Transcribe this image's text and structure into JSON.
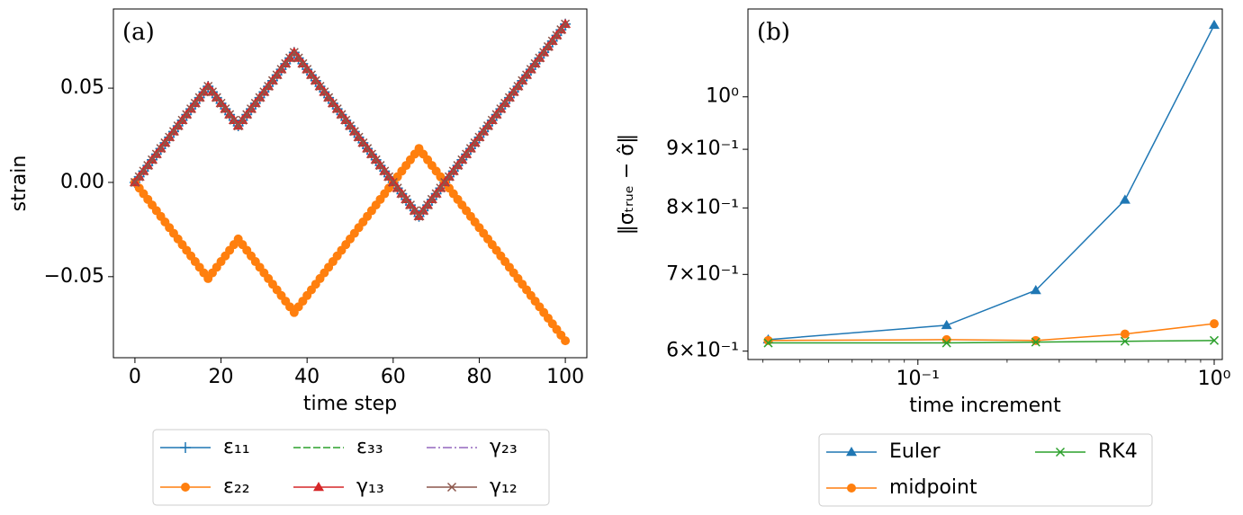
{
  "chart_data": [
    {
      "type": "line",
      "title": "(a)",
      "xlabel": "time step",
      "ylabel": "strain",
      "xlim": [
        -5,
        105
      ],
      "ylim": [
        -0.093,
        0.092
      ],
      "xticks": [
        0,
        20,
        40,
        60,
        80,
        100
      ],
      "yticks": [
        {
          "value": -0.05,
          "label": "−0.05"
        },
        {
          "value": 0,
          "label": "0.00"
        },
        {
          "value": 0.05,
          "label": "0.05"
        }
      ],
      "legend": "below",
      "legend_columns": 3,
      "x": [
        0,
        1,
        2,
        3,
        4,
        5,
        6,
        7,
        8,
        9,
        10,
        11,
        12,
        13,
        14,
        15,
        16,
        17,
        18,
        19,
        20,
        21,
        22,
        23,
        24,
        25,
        26,
        27,
        28,
        29,
        30,
        31,
        32,
        33,
        34,
        35,
        36,
        37,
        38,
        39,
        40,
        41,
        42,
        43,
        44,
        45,
        46,
        47,
        48,
        49,
        50,
        51,
        52,
        53,
        54,
        55,
        56,
        57,
        58,
        59,
        60,
        61,
        62,
        63,
        64,
        65,
        66,
        67,
        68,
        69,
        70,
        71,
        72,
        73,
        74,
        75,
        76,
        77,
        78,
        79,
        80,
        81,
        82,
        83,
        84,
        85,
        86,
        87,
        88,
        89,
        90,
        91,
        92,
        93,
        94,
        95,
        96,
        97,
        98,
        99,
        100
      ],
      "series": [
        {
          "name": "ε₁₁",
          "color": "#1f77b4",
          "marker": "+",
          "linestyle": "solid",
          "values": [
            0,
            0.003,
            0.006,
            0.009,
            0.012,
            0.015,
            0.018,
            0.021,
            0.024,
            0.027,
            0.03,
            0.033,
            0.036,
            0.039,
            0.042,
            0.045,
            0.048,
            0.051,
            0.048,
            0.045,
            0.042,
            0.039,
            0.036,
            0.033,
            0.03,
            0.033,
            0.036,
            0.039,
            0.042,
            0.045,
            0.048,
            0.051,
            0.054,
            0.057,
            0.06,
            0.063,
            0.066,
            0.069,
            0.066,
            0.063,
            0.06,
            0.057,
            0.054,
            0.051,
            0.048,
            0.045,
            0.042,
            0.039,
            0.036,
            0.033,
            0.03,
            0.027,
            0.024,
            0.021,
            0.018,
            0.015,
            0.012,
            0.009,
            0.006,
            0.003,
            0,
            -0.003,
            -0.006,
            -0.009,
            -0.012,
            -0.015,
            -0.018,
            -0.015,
            -0.012,
            -0.009,
            -0.006,
            -0.003,
            0,
            0.003,
            0.006,
            0.009,
            0.012,
            0.015,
            0.018,
            0.021,
            0.024,
            0.027,
            0.03,
            0.033,
            0.036,
            0.039,
            0.042,
            0.045,
            0.048,
            0.051,
            0.054,
            0.057,
            0.06,
            0.063,
            0.066,
            0.069,
            0.072,
            0.075,
            0.078,
            0.081,
            0.084
          ]
        },
        {
          "name": "ε₂₂",
          "color": "#ff7f0e",
          "marker": "o",
          "linestyle": "solid",
          "values": [
            0,
            -0.003,
            -0.006,
            -0.009,
            -0.012,
            -0.015,
            -0.018,
            -0.021,
            -0.024,
            -0.027,
            -0.03,
            -0.033,
            -0.036,
            -0.039,
            -0.042,
            -0.045,
            -0.048,
            -0.051,
            -0.048,
            -0.045,
            -0.042,
            -0.039,
            -0.036,
            -0.033,
            -0.03,
            -0.033,
            -0.036,
            -0.039,
            -0.042,
            -0.045,
            -0.048,
            -0.051,
            -0.054,
            -0.057,
            -0.06,
            -0.063,
            -0.066,
            -0.069,
            -0.066,
            -0.063,
            -0.06,
            -0.057,
            -0.054,
            -0.051,
            -0.048,
            -0.045,
            -0.042,
            -0.039,
            -0.036,
            -0.033,
            -0.03,
            -0.027,
            -0.024,
            -0.021,
            -0.018,
            -0.015,
            -0.012,
            -0.009,
            -0.006,
            -0.003,
            0,
            0.003,
            0.006,
            0.009,
            0.012,
            0.015,
            0.018,
            0.015,
            0.012,
            0.009,
            0.006,
            0.003,
            0,
            -0.003,
            -0.006,
            -0.009,
            -0.012,
            -0.015,
            -0.018,
            -0.021,
            -0.024,
            -0.027,
            -0.03,
            -0.033,
            -0.036,
            -0.039,
            -0.042,
            -0.045,
            -0.048,
            -0.051,
            -0.054,
            -0.057,
            -0.06,
            -0.063,
            -0.066,
            -0.069,
            -0.072,
            -0.075,
            -0.078,
            -0.081,
            -0.084
          ]
        },
        {
          "name": "ε₃₃",
          "color": "#2ca02c",
          "marker": "none",
          "linestyle": "dashed",
          "values": [
            0,
            0.003,
            0.006,
            0.009,
            0.012,
            0.015,
            0.018,
            0.021,
            0.024,
            0.027,
            0.03,
            0.033,
            0.036,
            0.039,
            0.042,
            0.045,
            0.048,
            0.051,
            0.048,
            0.045,
            0.042,
            0.039,
            0.036,
            0.033,
            0.03,
            0.033,
            0.036,
            0.039,
            0.042,
            0.045,
            0.048,
            0.051,
            0.054,
            0.057,
            0.06,
            0.063,
            0.066,
            0.069,
            0.066,
            0.063,
            0.06,
            0.057,
            0.054,
            0.051,
            0.048,
            0.045,
            0.042,
            0.039,
            0.036,
            0.033,
            0.03,
            0.027,
            0.024,
            0.021,
            0.018,
            0.015,
            0.012,
            0.009,
            0.006,
            0.003,
            0,
            -0.003,
            -0.006,
            -0.009,
            -0.012,
            -0.015,
            -0.018,
            -0.015,
            -0.012,
            -0.009,
            -0.006,
            -0.003,
            0,
            0.003,
            0.006,
            0.009,
            0.012,
            0.015,
            0.018,
            0.021,
            0.024,
            0.027,
            0.03,
            0.033,
            0.036,
            0.039,
            0.042,
            0.045,
            0.048,
            0.051,
            0.054,
            0.057,
            0.06,
            0.063,
            0.066,
            0.069,
            0.072,
            0.075,
            0.078,
            0.081,
            0.084
          ]
        },
        {
          "name": "γ₁₃",
          "color": "#d62728",
          "marker": "^",
          "linestyle": "solid",
          "values": [
            0,
            0.003,
            0.006,
            0.009,
            0.012,
            0.015,
            0.018,
            0.021,
            0.024,
            0.027,
            0.03,
            0.033,
            0.036,
            0.039,
            0.042,
            0.045,
            0.048,
            0.051,
            0.048,
            0.045,
            0.042,
            0.039,
            0.036,
            0.033,
            0.03,
            0.033,
            0.036,
            0.039,
            0.042,
            0.045,
            0.048,
            0.051,
            0.054,
            0.057,
            0.06,
            0.063,
            0.066,
            0.069,
            0.066,
            0.063,
            0.06,
            0.057,
            0.054,
            0.051,
            0.048,
            0.045,
            0.042,
            0.039,
            0.036,
            0.033,
            0.03,
            0.027,
            0.024,
            0.021,
            0.018,
            0.015,
            0.012,
            0.009,
            0.006,
            0.003,
            0,
            -0.003,
            -0.006,
            -0.009,
            -0.012,
            -0.015,
            -0.018,
            -0.015,
            -0.012,
            -0.009,
            -0.006,
            -0.003,
            0,
            0.003,
            0.006,
            0.009,
            0.012,
            0.015,
            0.018,
            0.021,
            0.024,
            0.027,
            0.03,
            0.033,
            0.036,
            0.039,
            0.042,
            0.045,
            0.048,
            0.051,
            0.054,
            0.057,
            0.06,
            0.063,
            0.066,
            0.069,
            0.072,
            0.075,
            0.078,
            0.081,
            0.084
          ]
        },
        {
          "name": "γ₂₃",
          "color": "#9467bd",
          "marker": "none",
          "linestyle": "dashdot",
          "values": [
            0,
            0.003,
            0.006,
            0.009,
            0.012,
            0.015,
            0.018,
            0.021,
            0.024,
            0.027,
            0.03,
            0.033,
            0.036,
            0.039,
            0.042,
            0.045,
            0.048,
            0.051,
            0.048,
            0.045,
            0.042,
            0.039,
            0.036,
            0.033,
            0.03,
            0.033,
            0.036,
            0.039,
            0.042,
            0.045,
            0.048,
            0.051,
            0.054,
            0.057,
            0.06,
            0.063,
            0.066,
            0.069,
            0.066,
            0.063,
            0.06,
            0.057,
            0.054,
            0.051,
            0.048,
            0.045,
            0.042,
            0.039,
            0.036,
            0.033,
            0.03,
            0.027,
            0.024,
            0.021,
            0.018,
            0.015,
            0.012,
            0.009,
            0.006,
            0.003,
            0,
            -0.003,
            -0.006,
            -0.009,
            -0.012,
            -0.015,
            -0.018,
            -0.015,
            -0.012,
            -0.009,
            -0.006,
            -0.003,
            0,
            0.003,
            0.006,
            0.009,
            0.012,
            0.015,
            0.018,
            0.021,
            0.024,
            0.027,
            0.03,
            0.033,
            0.036,
            0.039,
            0.042,
            0.045,
            0.048,
            0.051,
            0.054,
            0.057,
            0.06,
            0.063,
            0.066,
            0.069,
            0.072,
            0.075,
            0.078,
            0.081,
            0.084
          ]
        },
        {
          "name": "γ₁₂",
          "color": "#8c564b",
          "marker": "x",
          "linestyle": "solid",
          "values": [
            0,
            0.003,
            0.006,
            0.009,
            0.012,
            0.015,
            0.018,
            0.021,
            0.024,
            0.027,
            0.03,
            0.033,
            0.036,
            0.039,
            0.042,
            0.045,
            0.048,
            0.051,
            0.048,
            0.045,
            0.042,
            0.039,
            0.036,
            0.033,
            0.03,
            0.033,
            0.036,
            0.039,
            0.042,
            0.045,
            0.048,
            0.051,
            0.054,
            0.057,
            0.06,
            0.063,
            0.066,
            0.069,
            0.066,
            0.063,
            0.06,
            0.057,
            0.054,
            0.051,
            0.048,
            0.045,
            0.042,
            0.039,
            0.036,
            0.033,
            0.03,
            0.027,
            0.024,
            0.021,
            0.018,
            0.015,
            0.012,
            0.009,
            0.006,
            0.003,
            0,
            -0.003,
            -0.006,
            -0.009,
            -0.012,
            -0.015,
            -0.018,
            -0.015,
            -0.012,
            -0.009,
            -0.006,
            -0.003,
            0,
            0.003,
            0.006,
            0.009,
            0.012,
            0.015,
            0.018,
            0.021,
            0.024,
            0.027,
            0.03,
            0.033,
            0.036,
            0.039,
            0.042,
            0.045,
            0.048,
            0.051,
            0.054,
            0.057,
            0.06,
            0.063,
            0.066,
            0.069,
            0.072,
            0.075,
            0.078,
            0.081,
            0.084
          ]
        }
      ]
    },
    {
      "type": "line",
      "title": "(b)",
      "xlabel": "time increment",
      "ylabel": "‖σₜᵣᵤₑ − σ̂‖",
      "xscale": "log",
      "yscale": "log",
      "xlim": [
        0.0267,
        1.065
      ],
      "ylim": [
        0.59,
        1.193
      ],
      "xticks": [
        {
          "value": 0.1,
          "label": "10⁻¹"
        },
        {
          "value": 1,
          "label": "10⁰"
        }
      ],
      "xminorticks": [
        0.03,
        0.04,
        0.05,
        0.06,
        0.07,
        0.08,
        0.09,
        0.2,
        0.3,
        0.4,
        0.5,
        0.6,
        0.7,
        0.8,
        0.9
      ],
      "yticks": [
        {
          "value": 0.6,
          "label": "6×10⁻¹"
        },
        {
          "value": 0.7,
          "label": "7×10⁻¹"
        },
        {
          "value": 0.8,
          "label": "8×10⁻¹"
        },
        {
          "value": 0.9,
          "label": "9×10⁻¹"
        },
        {
          "value": 1,
          "label": "10⁰"
        }
      ],
      "legend": "below",
      "legend_columns": 2,
      "x": [
        0.03125,
        0.125,
        0.25,
        0.5,
        1
      ],
      "series": [
        {
          "name": "Euler",
          "color": "#1f77b4",
          "marker": "^",
          "linestyle": "solid",
          "values": [
            0.614,
            0.632,
            0.678,
            0.813,
            1.155
          ]
        },
        {
          "name": "midpoint",
          "color": "#ff7f0e",
          "marker": "o",
          "linestyle": "solid",
          "values": [
            0.613,
            0.614,
            0.613,
            0.621,
            0.634
          ]
        },
        {
          "name": "RK4",
          "color": "#2ca02c",
          "marker": "x",
          "linestyle": "solid",
          "values": [
            0.61,
            0.61,
            0.611,
            0.612,
            0.613
          ]
        }
      ]
    }
  ]
}
